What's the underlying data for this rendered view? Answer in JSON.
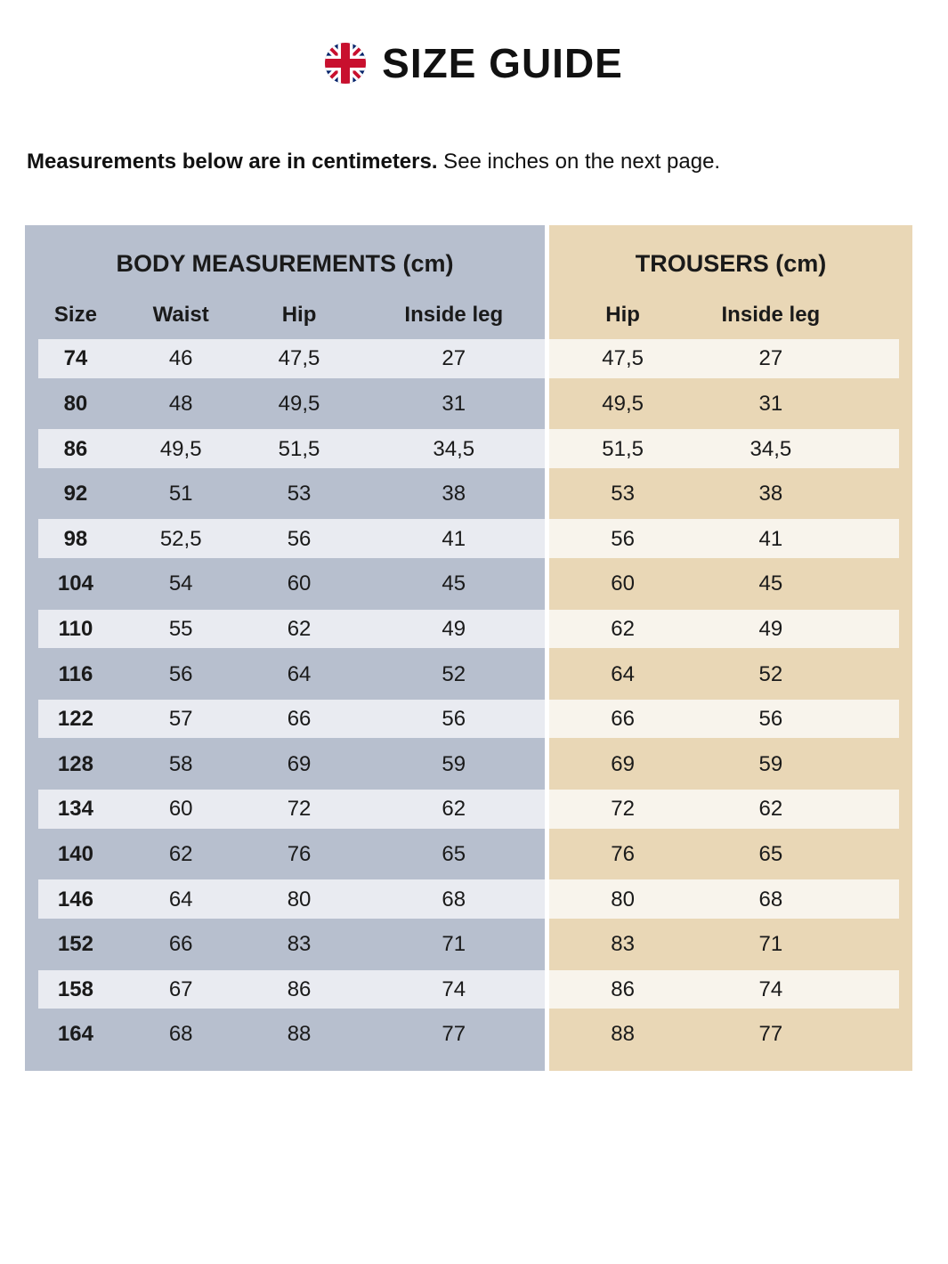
{
  "header": {
    "title": "SIZE GUIDE",
    "flag_icon": "uk-flag-icon"
  },
  "intro": {
    "bold_text": "Measurements below are in centimeters.",
    "regular_text": " See inches on the next page."
  },
  "table": {
    "body_section": {
      "title": "BODY MEASUREMENTS (cm)",
      "columns": [
        "Size",
        "Waist",
        "Hip",
        "Inside leg"
      ]
    },
    "trousers_section": {
      "title": "TROUSERS (cm)",
      "columns": [
        "Hip",
        "Inside leg"
      ]
    },
    "rows": [
      {
        "size": "74",
        "waist": "46",
        "hip": "47,5",
        "inside_leg": "27",
        "trousers_hip": "47,5",
        "trousers_inside_leg": "27"
      },
      {
        "size": "80",
        "waist": "48",
        "hip": "49,5",
        "inside_leg": "31",
        "trousers_hip": "49,5",
        "trousers_inside_leg": "31"
      },
      {
        "size": "86",
        "waist": "49,5",
        "hip": "51,5",
        "inside_leg": "34,5",
        "trousers_hip": "51,5",
        "trousers_inside_leg": "34,5"
      },
      {
        "size": "92",
        "waist": "51",
        "hip": "53",
        "inside_leg": "38",
        "trousers_hip": "53",
        "trousers_inside_leg": "38"
      },
      {
        "size": "98",
        "waist": "52,5",
        "hip": "56",
        "inside_leg": "41",
        "trousers_hip": "56",
        "trousers_inside_leg": "41"
      },
      {
        "size": "104",
        "waist": "54",
        "hip": "60",
        "inside_leg": "45",
        "trousers_hip": "60",
        "trousers_inside_leg": "45"
      },
      {
        "size": "110",
        "waist": "55",
        "hip": "62",
        "inside_leg": "49",
        "trousers_hip": "62",
        "trousers_inside_leg": "49"
      },
      {
        "size": "116",
        "waist": "56",
        "hip": "64",
        "inside_leg": "52",
        "trousers_hip": "64",
        "trousers_inside_leg": "52"
      },
      {
        "size": "122",
        "waist": "57",
        "hip": "66",
        "inside_leg": "56",
        "trousers_hip": "66",
        "trousers_inside_leg": "56"
      },
      {
        "size": "128",
        "waist": "58",
        "hip": "69",
        "inside_leg": "59",
        "trousers_hip": "69",
        "trousers_inside_leg": "59"
      },
      {
        "size": "134",
        "waist": "60",
        "hip": "72",
        "inside_leg": "62",
        "trousers_hip": "72",
        "trousers_inside_leg": "62"
      },
      {
        "size": "140",
        "waist": "62",
        "hip": "76",
        "inside_leg": "65",
        "trousers_hip": "76",
        "trousers_inside_leg": "65"
      },
      {
        "size": "146",
        "waist": "64",
        "hip": "80",
        "inside_leg": "68",
        "trousers_hip": "80",
        "trousers_inside_leg": "68"
      },
      {
        "size": "152",
        "waist": "66",
        "hip": "83",
        "inside_leg": "71",
        "trousers_hip": "83",
        "trousers_inside_leg": "71"
      },
      {
        "size": "158",
        "waist": "67",
        "hip": "86",
        "inside_leg": "74",
        "trousers_hip": "86",
        "trousers_inside_leg": "74"
      },
      {
        "size": "164",
        "waist": "68",
        "hip": "88",
        "inside_leg": "77",
        "trousers_hip": "88",
        "trousers_inside_leg": "77"
      }
    ]
  },
  "colors": {
    "body_section_bg": "#b7bfce",
    "body_stripe_bg": "#e9ebf1",
    "trousers_section_bg": "#e9d7b6",
    "trousers_stripe_bg": "#f8f4ec",
    "flag_navy": "#012169",
    "flag_red": "#C8102E",
    "text": "#1a1a1a"
  }
}
